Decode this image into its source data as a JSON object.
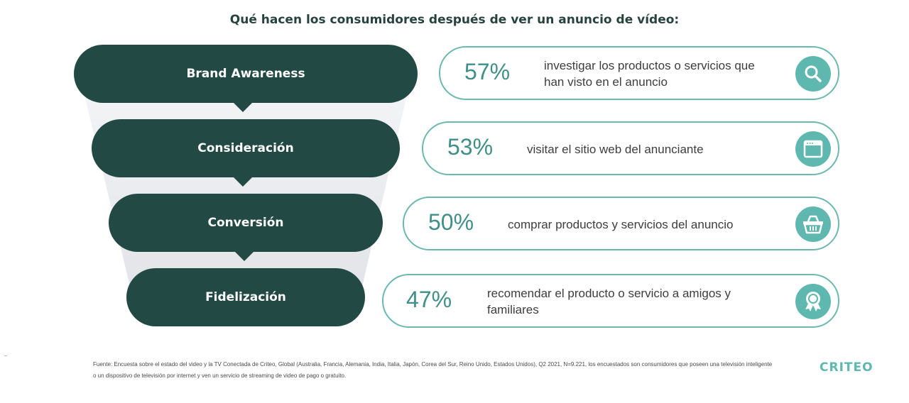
{
  "title": "Qué hacen los consumidores después de ver un anuncio de vídeo:",
  "funnel": {
    "stages": [
      {
        "label": "Brand  Awareness"
      },
      {
        "label": "Consideración"
      },
      {
        "label": "Conversión"
      },
      {
        "label": "Fidelización"
      }
    ]
  },
  "actions": [
    {
      "percent": "57%",
      "text": "investigar los productos o servicios que han visto en el anuncio",
      "icon": "search-icon"
    },
    {
      "percent": "53%",
      "text": "visitar el sitio web del anunciante",
      "icon": "browser-window-icon"
    },
    {
      "percent": "50%",
      "text": "comprar productos y servicios del anuncio",
      "icon": "shopping-basket-icon"
    },
    {
      "percent": "47%",
      "text": "recomendar el producto o servicio a amigos y familiares",
      "icon": "award-ribbon-icon"
    }
  ],
  "source": "Fuente:  Encuesta sobre el estado del video y la TV Conectada de Criteo,  Global (Australia,  Francia,  Alemania,  India, Italia,  Japón, Corea del Sur, Reino Unido, Estados Unidos), Q2 2021, N=9.221, los encuestados son consumidores que poseen una televisión  inteligente  o un dispositivo de televisión  por internet  y ven  un servicio de streaming  de video de pago o gratuito.",
  "logo": "CRITEO",
  "colors": {
    "stage_fill": "#234945",
    "pill_border": "#6cb8b1",
    "percent_text": "#3f8f89",
    "icon_circle": "#5fb8b0",
    "funnel_bg": "#e3e5ea"
  }
}
